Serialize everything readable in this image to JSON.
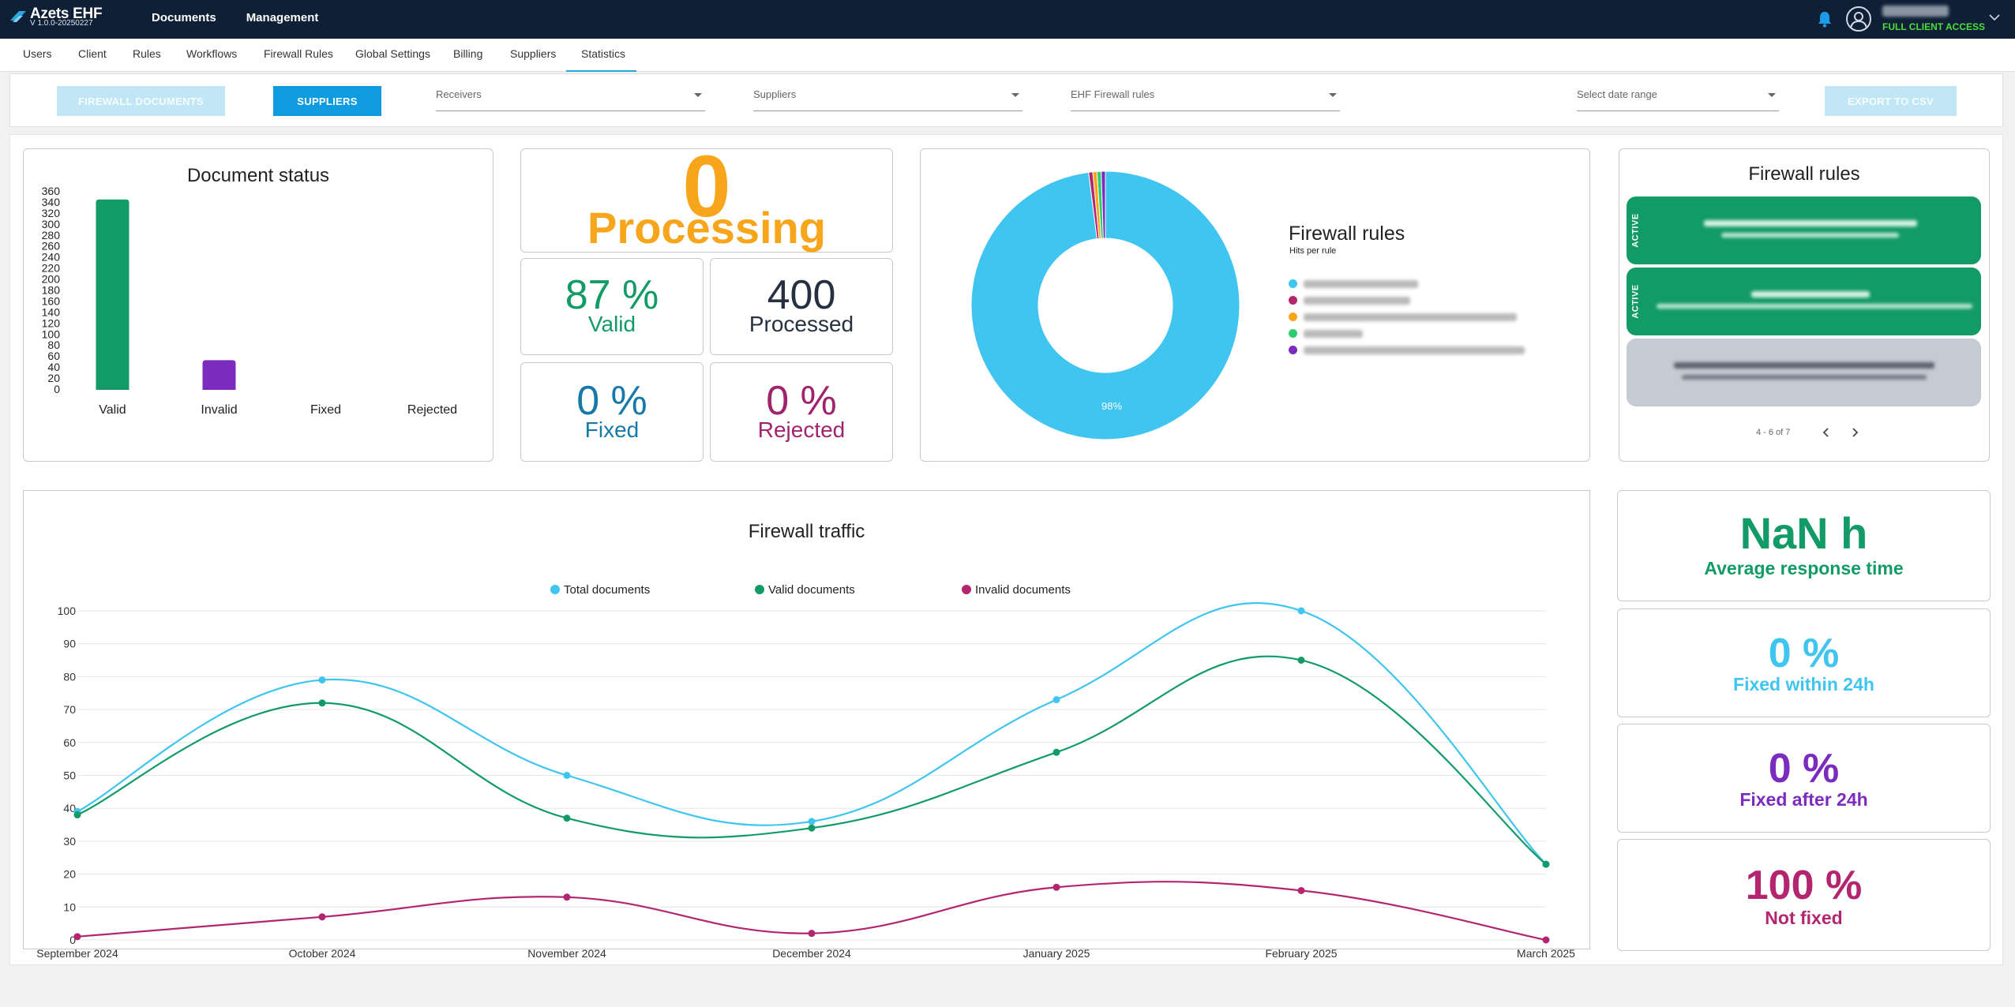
{
  "app": {
    "name": "Azets EHF",
    "version": "V 1.0.0-20250227"
  },
  "topnav": [
    {
      "label": "Documents"
    },
    {
      "label": "Management"
    }
  ],
  "user": {
    "access": "FULL CLIENT ACCESS"
  },
  "tabs": [
    {
      "label": "Users"
    },
    {
      "label": "Client"
    },
    {
      "label": "Rules"
    },
    {
      "label": "Workflows"
    },
    {
      "label": "Firewall Rules"
    },
    {
      "label": "Global Settings"
    },
    {
      "label": "Billing"
    },
    {
      "label": "Suppliers"
    },
    {
      "label": "Statistics",
      "active": true
    }
  ],
  "filters": {
    "firewall_documents": "FIREWALL DOCUMENTS",
    "suppliers_btn": "SUPPLIERS",
    "receivers": "Receivers",
    "suppliers": "Suppliers",
    "ehf_rules": "EHF Firewall rules",
    "date_range": "Select date range",
    "export": "EXPORT TO CSV"
  },
  "document_status": {
    "title": "Document status"
  },
  "processing": {
    "value": "0",
    "label": "Processing"
  },
  "kpis": {
    "valid": {
      "value": "87 %",
      "label": "Valid"
    },
    "processed": {
      "value": "400",
      "label": "Processed"
    },
    "fixed": {
      "value": "0 %",
      "label": "Fixed"
    },
    "rejected": {
      "value": "0 %",
      "label": "Rejected"
    }
  },
  "fw_pie": {
    "title": "Firewall rules",
    "subtitle": "Hits per rule",
    "main_label": "98%"
  },
  "fw_rules_panel": {
    "title": "Firewall rules",
    "active_label": "ACTIVE",
    "pagination": "4 - 6 of 7"
  },
  "stats": {
    "avg_response": {
      "value": "NaN h",
      "label": "Average response time"
    },
    "fixed_24h": {
      "value": "0 %",
      "label": "Fixed within 24h"
    },
    "fixed_after": {
      "value": "0 %",
      "label": "Fixed after 24h"
    },
    "not_fixed": {
      "value": "100 %",
      "label": "Not fixed"
    }
  },
  "colors": {
    "navy": "#0f1f36",
    "accent": "#0f9be0",
    "green": "#129b67",
    "purple": "#7b2cbf",
    "magenta": "#b3266f",
    "orange": "#f7a51b",
    "sky": "#3fc5ef",
    "teal": "#1679a8"
  },
  "chart_data": [
    {
      "type": "bar",
      "title": "Document status",
      "categories": [
        "Valid",
        "Invalid",
        "Fixed",
        "Rejected"
      ],
      "values": [
        346,
        54,
        0,
        0
      ],
      "colors": [
        "#129b67",
        "#7b2cbf",
        "#129b67",
        "#b3266f"
      ],
      "ylim": [
        0,
        360
      ],
      "yticks": [
        0,
        20,
        40,
        60,
        80,
        100,
        120,
        140,
        160,
        180,
        200,
        220,
        240,
        260,
        280,
        300,
        320,
        340,
        360
      ]
    },
    {
      "type": "pie",
      "title": "Firewall rules",
      "subtitle": "Hits per rule",
      "values": [
        98,
        0.5,
        0.5,
        0.5,
        0.5
      ],
      "colors": [
        "#3fc5ef",
        "#b3266f",
        "#f7a51b",
        "#2ecc71",
        "#7b2cbf"
      ],
      "slice_labels": [
        "98%"
      ]
    },
    {
      "type": "line",
      "title": "Firewall traffic",
      "categories": [
        "September 2024",
        "October 2024",
        "November 2024",
        "December 2024",
        "January 2025",
        "February 2025",
        "March 2025"
      ],
      "series": [
        {
          "name": "Total documents",
          "color": "#3fc5ef",
          "values": [
            39,
            79,
            50,
            36,
            73,
            100,
            23
          ]
        },
        {
          "name": "Valid documents",
          "color": "#129b67",
          "values": [
            38,
            72,
            37,
            34,
            57,
            85,
            23
          ]
        },
        {
          "name": "Invalid documents",
          "color": "#b3266f",
          "values": [
            1,
            7,
            13,
            2,
            16,
            15,
            0
          ]
        }
      ],
      "ylim": [
        0,
        100
      ],
      "yticks": [
        0,
        10,
        20,
        30,
        40,
        50,
        60,
        70,
        80,
        90,
        100
      ],
      "grid": true,
      "legend": "top"
    }
  ]
}
